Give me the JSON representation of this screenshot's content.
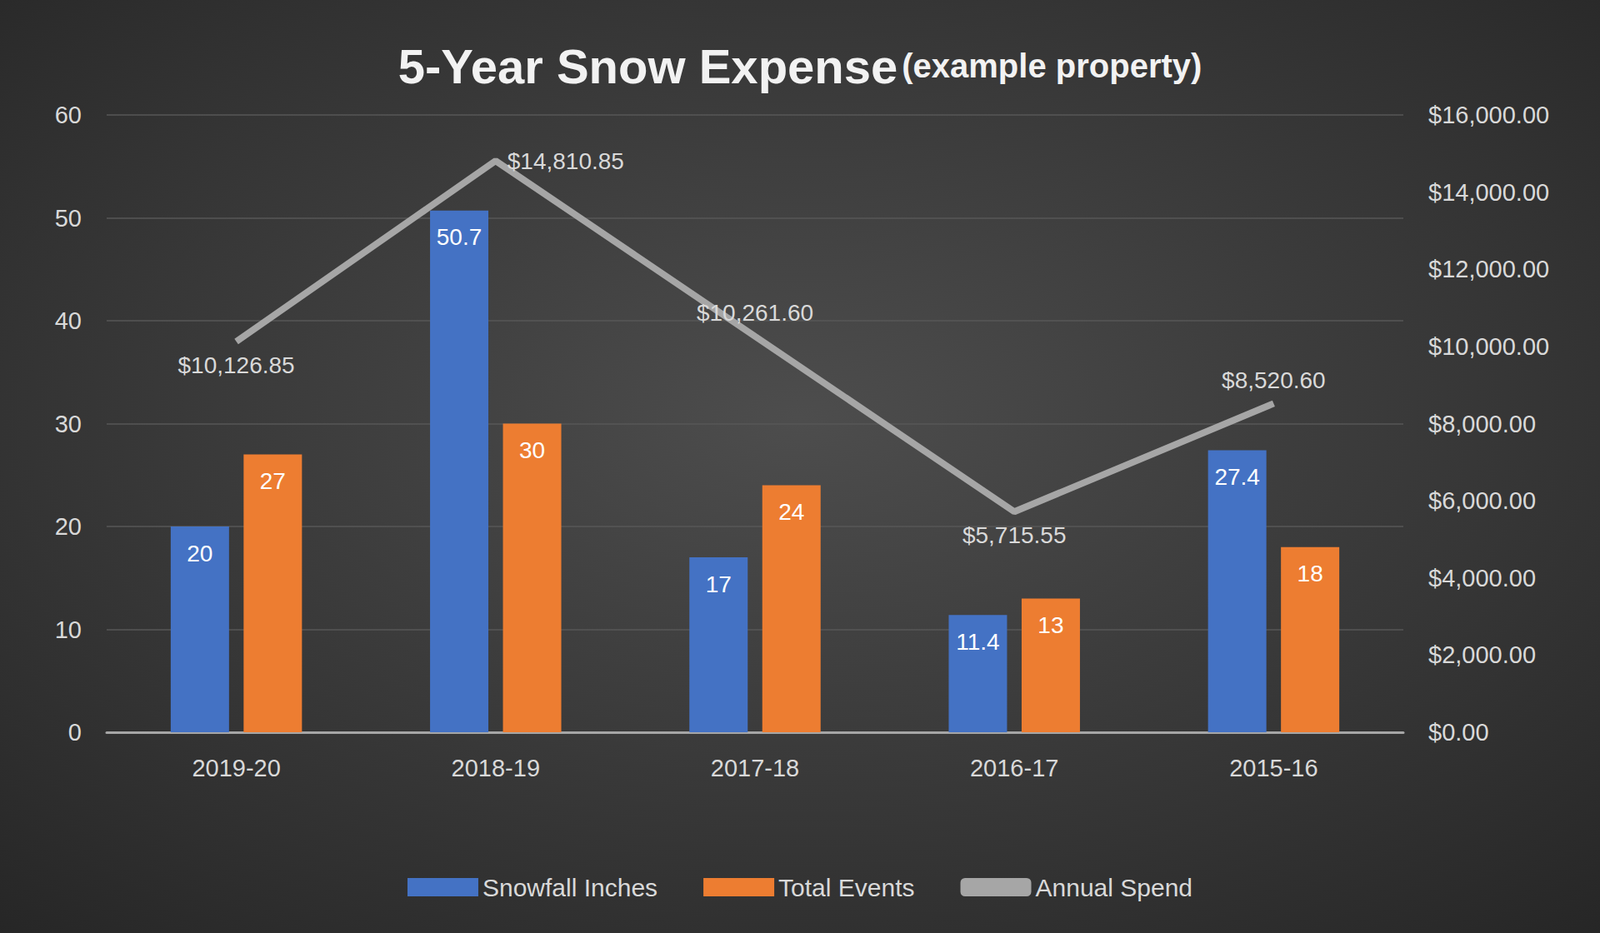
{
  "chart_data": {
    "type": "bar",
    "title": "5-Year Snow Expense",
    "subtitle": "(example property)",
    "categories": [
      "2019-20",
      "2018-19",
      "2017-18",
      "2016-17",
      "2015-16"
    ],
    "series": [
      {
        "name": "Snowfall Inches",
        "type": "bar",
        "color": "#4472c4",
        "values": [
          20,
          50.7,
          17,
          11.4,
          27.4
        ]
      },
      {
        "name": "Total Events",
        "type": "bar",
        "color": "#ed7d31",
        "values": [
          27,
          30,
          24,
          13,
          18
        ]
      },
      {
        "name": "Annual Spend",
        "type": "line",
        "axis": "y2",
        "color": "#a6a6a6",
        "values": [
          10126.85,
          14810.85,
          10261.6,
          5715.55,
          8520.6
        ],
        "value_labels": [
          "$10,126.85",
          "$14,810.85",
          "$10,261.60",
          "$5,715.55",
          "$8,520.60"
        ]
      }
    ],
    "ylim": [
      0,
      60
    ],
    "yticks": [
      0,
      10,
      20,
      30,
      40,
      50,
      60
    ],
    "y2lim": [
      0,
      16000
    ],
    "y2ticks": [
      {
        "value": 0,
        "label": "$0.00"
      },
      {
        "value": 2000,
        "label": "$2,000.00"
      },
      {
        "value": 4000,
        "label": "$4,000.00"
      },
      {
        "value": 6000,
        "label": "$6,000.00"
      },
      {
        "value": 8000,
        "label": "$8,000.00"
      },
      {
        "value": 10000,
        "label": "$10,000.00"
      },
      {
        "value": 12000,
        "label": "$12,000.00"
      },
      {
        "value": 14000,
        "label": "$14,000.00"
      },
      {
        "value": 16000,
        "label": "$16,000.00"
      }
    ],
    "grid": true,
    "legend": "bottom",
    "data_labels": true
  }
}
